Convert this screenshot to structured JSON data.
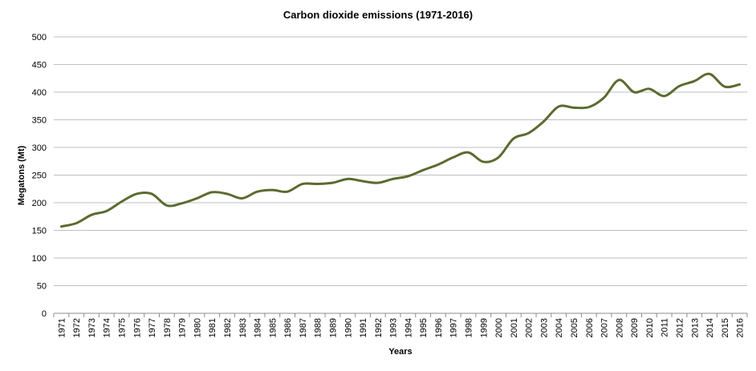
{
  "chart_data": {
    "type": "line",
    "title": "Carbon dioxide emissions (1971-2016)",
    "xlabel": "Years",
    "ylabel": "Megatons  (Mt)",
    "ylim": [
      0,
      500
    ],
    "yticks": [
      "0",
      "50",
      "100",
      "150",
      "200",
      "250",
      "300",
      "350",
      "400",
      "450",
      "500"
    ],
    "grid": true,
    "legend": "none",
    "categories": [
      "1971",
      "1972",
      "1973",
      "1974",
      "1975",
      "1976",
      "1977",
      "1978",
      "1979",
      "1980",
      "1981",
      "1982",
      "1983",
      "1984",
      "1985",
      "1986",
      "1987",
      "1988",
      "1989",
      "1990",
      "1991",
      "1992",
      "1993",
      "1994",
      "1995",
      "1996",
      "1997",
      "1998",
      "1999",
      "2000",
      "2001",
      "2002",
      "2003",
      "2004",
      "2005",
      "2006",
      "2007",
      "2008",
      "2009",
      "2010",
      "2011",
      "2012",
      "2013",
      "2014",
      "2015",
      "2016"
    ],
    "series": [
      {
        "name": "Carbon dioxide emissions",
        "color": "#5b6b2f",
        "values": [
          157,
          163,
          178,
          185,
          202,
          216,
          216,
          195,
          199,
          208,
          219,
          216,
          208,
          220,
          223,
          220,
          234,
          234,
          236,
          243,
          239,
          236,
          243,
          248,
          259,
          269,
          282,
          291,
          274,
          282,
          316,
          326,
          347,
          374,
          372,
          373,
          390,
          422,
          400,
          406,
          393,
          411,
          420,
          433,
          410,
          414
        ]
      }
    ]
  }
}
